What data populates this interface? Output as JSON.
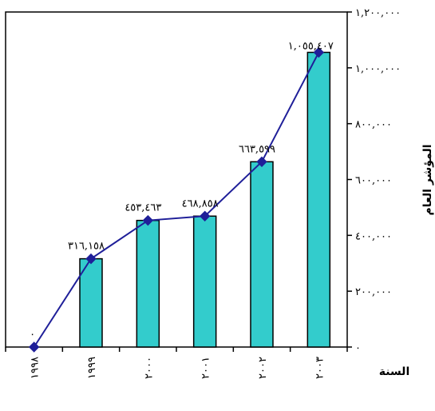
{
  "chart_data": {
    "type": "bar+line",
    "title": "",
    "xlabel": "السنة",
    "ylabel": "المؤشر العام",
    "categories": [
      "١٩٩٨",
      "١٩٩٩",
      "٢٠٠٠",
      "٢٠٠١",
      "٢٠٠٢",
      "٢٠٠٣"
    ],
    "series": [
      {
        "kind": "bar",
        "values": [
          0,
          316158,
          453463,
          468858,
          663599,
          1055407
        ]
      },
      {
        "kind": "line",
        "marker": "diamond",
        "values": [
          0,
          316158,
          453463,
          468858,
          663599,
          1055407
        ]
      }
    ],
    "data_labels": [
      "٠",
      "٣١٦,١٥٨",
      "٤٥٣,٤٦٣",
      "٤٦٨,٨٥٨",
      "٦٦٣,٥٩٩",
      "١,٠٥٥,٤٠٧"
    ],
    "ylim": [
      0,
      1200000
    ],
    "yticks": [
      0,
      200000,
      400000,
      600000,
      800000,
      1000000,
      1200000
    ],
    "ytick_labels": [
      "٠",
      "٢٠٠,٠٠٠",
      "٤٠٠,٠٠٠",
      "٦٠٠,٠٠٠",
      "٨٠٠,٠٠٠",
      "١,٠٠٠,٠٠٠",
      "١,٢٠٠,٠٠٠"
    ],
    "y_axis_position": "right",
    "grid": false,
    "legend": "none",
    "colors": {
      "bar_fill": "#33CCCC",
      "bar_stroke": "#000000",
      "line": "#1F1F99",
      "marker": "#1F1F99"
    }
  }
}
